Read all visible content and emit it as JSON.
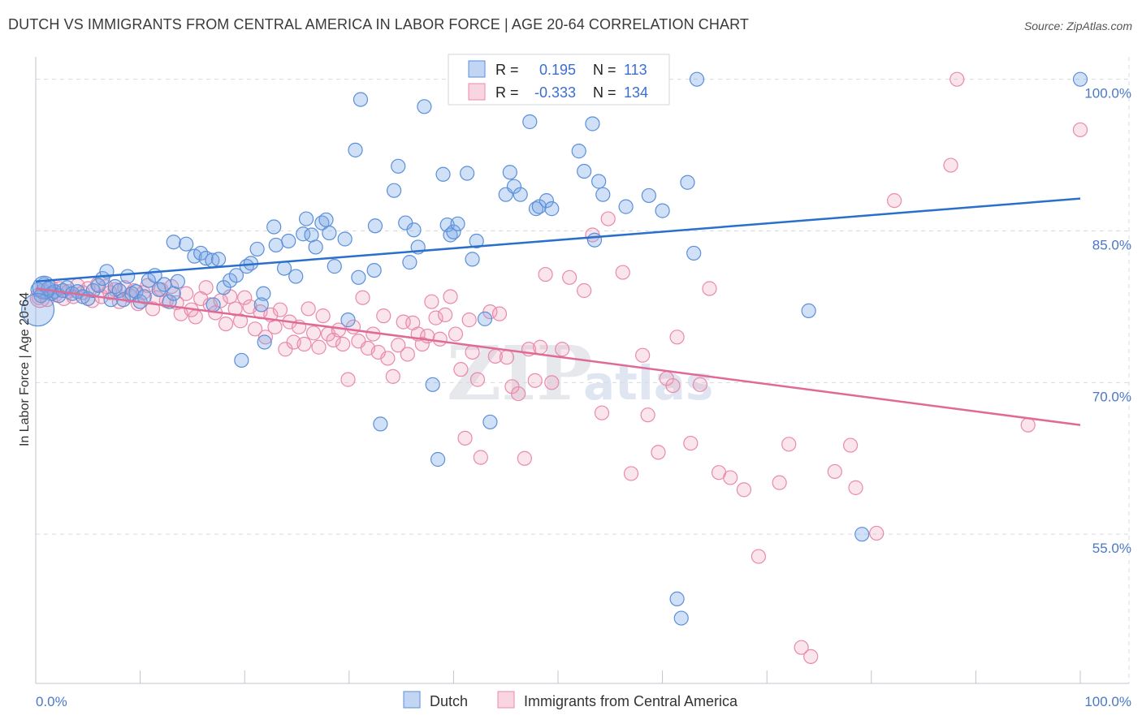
{
  "title": "DUTCH VS IMMIGRANTS FROM CENTRAL AMERICA IN LABOR FORCE | AGE 20-64 CORRELATION CHART",
  "source": "Source: ZipAtlas.com",
  "watermark": {
    "zip": "ZIP",
    "atlas": "atlas"
  },
  "colors": {
    "dutch": "#5b8fd9",
    "immigrants": "#e98aaa",
    "dutch_line": "#2a6fcc",
    "immigrants_line": "#e06a96",
    "grid": "#d6dbe3",
    "tick": "#4a78c8"
  },
  "legend": {
    "rows": [
      {
        "r_label": "R =",
        "r_value": "0.195",
        "n_label": "N =",
        "n_value": "113"
      },
      {
        "r_label": "R =",
        "r_value": "-0.333",
        "n_label": "N =",
        "n_value": "134"
      }
    ]
  },
  "chart_data": {
    "type": "scatter",
    "title": "DUTCH VS IMMIGRANTS FROM CENTRAL AMERICA IN LABOR FORCE | AGE 20-64 CORRELATION CHART",
    "xlabel": "",
    "ylabel": "In Labor Force | Age 20-64",
    "xlim": [
      0,
      100
    ],
    "ylim": [
      40,
      101.5
    ],
    "x_tick_labels": [
      "0.0%",
      "100.0%"
    ],
    "y_ticks": [
      55,
      70,
      85,
      100
    ],
    "y_tick_labels": [
      "55.0%",
      "70.0%",
      "85.0%",
      "100.0%"
    ],
    "legend_entries": [
      "Dutch",
      "Immigrants from Central America"
    ],
    "series": [
      {
        "name": "Dutch",
        "r": 0.195,
        "n": 113,
        "trend": {
          "x": [
            0,
            100
          ],
          "y": [
            80.0,
            88.2
          ]
        },
        "points": [
          [
            0.2,
            79.2
          ],
          [
            0.5,
            78.6
          ],
          [
            0.8,
            79.7
          ],
          [
            1.2,
            79.3
          ],
          [
            1.5,
            78.8
          ],
          [
            1.8,
            79.0
          ],
          [
            2.2,
            78.6
          ],
          [
            2.6,
            79.1
          ],
          [
            3.0,
            79.4
          ],
          [
            3.5,
            78.8
          ],
          [
            4.0,
            79.0
          ],
          [
            4.5,
            78.5
          ],
          [
            5.0,
            78.3
          ],
          [
            5.5,
            79.1
          ],
          [
            6.0,
            79.6
          ],
          [
            6.4,
            80.3
          ],
          [
            6.8,
            81.0
          ],
          [
            7.2,
            78.2
          ],
          [
            7.6,
            79.5
          ],
          [
            8.0,
            79.1
          ],
          [
            8.4,
            78.2
          ],
          [
            8.8,
            80.5
          ],
          [
            9.2,
            78.8
          ],
          [
            9.6,
            79.0
          ],
          [
            10.0,
            78.0
          ],
          [
            10.4,
            78.5
          ],
          [
            10.8,
            80.1
          ],
          [
            11.4,
            80.6
          ],
          [
            11.8,
            79.2
          ],
          [
            12.3,
            79.7
          ],
          [
            12.8,
            78.0
          ],
          [
            13.2,
            78.8
          ],
          [
            13.6,
            80.0
          ],
          [
            13.2,
            83.9
          ],
          [
            14.4,
            83.7
          ],
          [
            15.2,
            82.5
          ],
          [
            15.8,
            82.8
          ],
          [
            16.3,
            82.3
          ],
          [
            16.9,
            82.1
          ],
          [
            17.5,
            82.2
          ],
          [
            17.0,
            77.7
          ],
          [
            18.0,
            79.4
          ],
          [
            18.6,
            80.1
          ],
          [
            19.2,
            80.6
          ],
          [
            19.7,
            72.2
          ],
          [
            20.2,
            81.5
          ],
          [
            20.6,
            81.8
          ],
          [
            21.2,
            83.2
          ],
          [
            21.8,
            78.8
          ],
          [
            21.6,
            77.7
          ],
          [
            21.9,
            74.0
          ],
          [
            22.8,
            85.4
          ],
          [
            23.0,
            83.6
          ],
          [
            23.8,
            81.3
          ],
          [
            24.2,
            84.0
          ],
          [
            24.9,
            80.5
          ],
          [
            25.6,
            84.7
          ],
          [
            25.9,
            86.2
          ],
          [
            26.4,
            84.6
          ],
          [
            26.8,
            83.4
          ],
          [
            27.4,
            85.8
          ],
          [
            27.8,
            86.1
          ],
          [
            28.1,
            84.8
          ],
          [
            28.6,
            81.5
          ],
          [
            29.6,
            84.2
          ],
          [
            29.9,
            76.2
          ],
          [
            30.6,
            93.0
          ],
          [
            30.9,
            80.4
          ],
          [
            31.1,
            98.0
          ],
          [
            32.5,
            85.5
          ],
          [
            32.4,
            81.1
          ],
          [
            33.0,
            65.9
          ],
          [
            34.3,
            89.0
          ],
          [
            34.7,
            91.4
          ],
          [
            35.4,
            85.8
          ],
          [
            35.8,
            81.9
          ],
          [
            36.2,
            85.1
          ],
          [
            36.6,
            83.4
          ],
          [
            37.2,
            97.3
          ],
          [
            38.0,
            69.8
          ],
          [
            38.5,
            62.4
          ],
          [
            39.0,
            90.6
          ],
          [
            39.4,
            85.6
          ],
          [
            39.7,
            84.6
          ],
          [
            40.0,
            84.9
          ],
          [
            40.4,
            85.7
          ],
          [
            41.3,
            90.7
          ],
          [
            41.8,
            82.2
          ],
          [
            42.2,
            84.0
          ],
          [
            43.0,
            76.3
          ],
          [
            43.5,
            66.1
          ],
          [
            45.0,
            88.6
          ],
          [
            45.4,
            90.8
          ],
          [
            45.8,
            89.4
          ],
          [
            46.4,
            88.6
          ],
          [
            47.3,
            95.8
          ],
          [
            47.9,
            87.2
          ],
          [
            48.2,
            87.4
          ],
          [
            48.9,
            88.0
          ],
          [
            49.4,
            87.2
          ],
          [
            52.0,
            92.9
          ],
          [
            52.5,
            90.9
          ],
          [
            53.3,
            95.6
          ],
          [
            53.5,
            84.1
          ],
          [
            53.9,
            89.9
          ],
          [
            54.3,
            88.6
          ],
          [
            56.5,
            87.4
          ],
          [
            58.7,
            88.5
          ],
          [
            60.0,
            87.0
          ],
          [
            62.4,
            89.8
          ],
          [
            63.0,
            82.8
          ],
          [
            63.3,
            100.0
          ],
          [
            74.0,
            77.1
          ],
          [
            79.1,
            55.0
          ],
          [
            61.4,
            48.6
          ],
          [
            61.8,
            46.7
          ],
          [
            100.0,
            100.0
          ]
        ]
      },
      {
        "name": "Immigrants from Central America",
        "r": -0.333,
        "n": 134,
        "trend": {
          "x": [
            0,
            100
          ],
          "y": [
            79.3,
            65.8
          ]
        },
        "points": [
          [
            0.3,
            78.4
          ],
          [
            0.7,
            79.1
          ],
          [
            1.1,
            78.2
          ],
          [
            1.5,
            79.4
          ],
          [
            1.9,
            78.7
          ],
          [
            2.3,
            79.3
          ],
          [
            2.7,
            78.3
          ],
          [
            3.1,
            79.0
          ],
          [
            3.6,
            78.5
          ],
          [
            4.0,
            79.6
          ],
          [
            4.5,
            78.9
          ],
          [
            5.0,
            79.3
          ],
          [
            5.4,
            78.1
          ],
          [
            5.9,
            79.7
          ],
          [
            6.3,
            78.5
          ],
          [
            6.7,
            79.5
          ],
          [
            7.1,
            78.9
          ],
          [
            7.6,
            79.2
          ],
          [
            8.0,
            78.0
          ],
          [
            8.5,
            79.4
          ],
          [
            9.0,
            78.6
          ],
          [
            9.4,
            79.1
          ],
          [
            9.8,
            77.8
          ],
          [
            10.3,
            78.9
          ],
          [
            10.7,
            79.6
          ],
          [
            11.2,
            77.3
          ],
          [
            11.6,
            78.4
          ],
          [
            12.0,
            79.2
          ],
          [
            12.5,
            78.1
          ],
          [
            13.0,
            79.5
          ],
          [
            13.5,
            77.9
          ],
          [
            13.9,
            76.8
          ],
          [
            14.4,
            78.8
          ],
          [
            14.9,
            77.2
          ],
          [
            15.3,
            76.5
          ],
          [
            15.8,
            78.3
          ],
          [
            16.3,
            79.4
          ],
          [
            16.7,
            77.7
          ],
          [
            17.2,
            76.9
          ],
          [
            17.7,
            78.1
          ],
          [
            18.2,
            75.8
          ],
          [
            18.6,
            78.5
          ],
          [
            19.1,
            77.3
          ],
          [
            19.6,
            76.1
          ],
          [
            20.0,
            78.4
          ],
          [
            20.5,
            77.5
          ],
          [
            21.0,
            75.3
          ],
          [
            21.5,
            77.0
          ],
          [
            22.0,
            74.5
          ],
          [
            22.5,
            76.7
          ],
          [
            22.9,
            75.5
          ],
          [
            23.4,
            77.2
          ],
          [
            23.9,
            73.3
          ],
          [
            24.3,
            76.0
          ],
          [
            24.7,
            74.0
          ],
          [
            25.2,
            75.5
          ],
          [
            25.7,
            73.8
          ],
          [
            26.1,
            77.3
          ],
          [
            26.6,
            74.9
          ],
          [
            27.1,
            73.5
          ],
          [
            27.5,
            76.6
          ],
          [
            28.0,
            74.8
          ],
          [
            28.5,
            74.2
          ],
          [
            29.0,
            75.2
          ],
          [
            29.4,
            73.8
          ],
          [
            29.9,
            70.3
          ],
          [
            30.4,
            75.5
          ],
          [
            30.9,
            74.1
          ],
          [
            31.3,
            78.4
          ],
          [
            31.8,
            73.4
          ],
          [
            32.3,
            74.8
          ],
          [
            32.8,
            73.0
          ],
          [
            33.3,
            76.6
          ],
          [
            33.7,
            72.4
          ],
          [
            34.2,
            70.6
          ],
          [
            34.7,
            73.7
          ],
          [
            35.2,
            76.0
          ],
          [
            35.6,
            72.8
          ],
          [
            36.1,
            75.9
          ],
          [
            36.6,
            74.8
          ],
          [
            37.0,
            73.8
          ],
          [
            37.5,
            74.6
          ],
          [
            37.9,
            78.0
          ],
          [
            38.3,
            76.4
          ],
          [
            38.7,
            74.3
          ],
          [
            39.2,
            76.7
          ],
          [
            39.7,
            78.5
          ],
          [
            40.2,
            74.8
          ],
          [
            40.7,
            71.3
          ],
          [
            41.1,
            64.5
          ],
          [
            41.5,
            76.2
          ],
          [
            41.8,
            73.0
          ],
          [
            42.3,
            70.3
          ],
          [
            42.6,
            62.6
          ],
          [
            43.5,
            77.0
          ],
          [
            44.0,
            72.6
          ],
          [
            44.4,
            76.8
          ],
          [
            45.1,
            72.5
          ],
          [
            45.6,
            69.6
          ],
          [
            46.2,
            68.9
          ],
          [
            46.8,
            62.5
          ],
          [
            47.2,
            73.3
          ],
          [
            47.8,
            70.2
          ],
          [
            48.3,
            73.5
          ],
          [
            48.8,
            80.7
          ],
          [
            49.4,
            70.0
          ],
          [
            50.4,
            73.3
          ],
          [
            51.1,
            80.4
          ],
          [
            52.5,
            79.1
          ],
          [
            53.3,
            84.6
          ],
          [
            54.2,
            67.0
          ],
          [
            54.8,
            86.2
          ],
          [
            56.2,
            80.9
          ],
          [
            57.0,
            61.0
          ],
          [
            58.1,
            72.7
          ],
          [
            58.6,
            66.8
          ],
          [
            59.6,
            63.1
          ],
          [
            60.4,
            70.4
          ],
          [
            61.0,
            69.7
          ],
          [
            61.4,
            74.5
          ],
          [
            62.7,
            64.0
          ],
          [
            63.6,
            69.8
          ],
          [
            64.5,
            79.3
          ],
          [
            65.4,
            61.1
          ],
          [
            66.5,
            60.6
          ],
          [
            67.8,
            59.4
          ],
          [
            69.2,
            52.8
          ],
          [
            71.2,
            60.1
          ],
          [
            72.1,
            63.9
          ],
          [
            73.3,
            43.8
          ],
          [
            74.2,
            42.9
          ],
          [
            76.5,
            61.2
          ],
          [
            78.0,
            63.8
          ],
          [
            78.5,
            59.6
          ],
          [
            80.5,
            55.1
          ],
          [
            82.2,
            88.0
          ],
          [
            87.6,
            91.5
          ],
          [
            88.2,
            100.0
          ],
          [
            95.0,
            65.8
          ],
          [
            100.0,
            95.0
          ]
        ]
      }
    ]
  }
}
